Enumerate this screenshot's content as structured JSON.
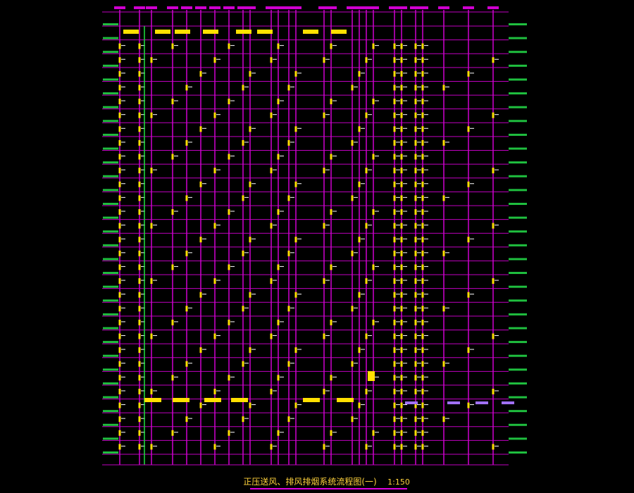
{
  "drawing": {
    "title": "正压送风、排风排烟系统流程图(一)",
    "scale": "1:150"
  }
}
